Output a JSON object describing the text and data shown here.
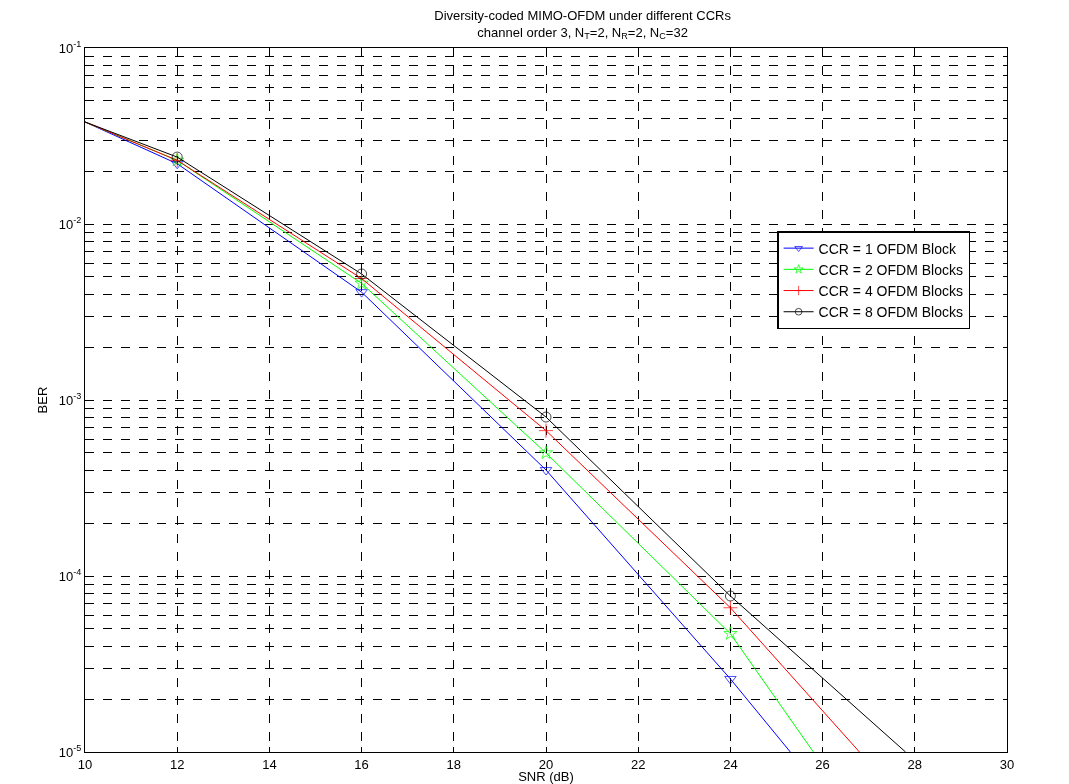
{
  "chart_data": {
    "type": "line",
    "title": "Diversity-coded MIMO-OFDM under different CCRs",
    "subtitle": "channel order 3, N$_{T}$=2, N$_{R}$=2, N$_{C}$=32",
    "xlabel": "SNR (dB)",
    "ylabel": "BER",
    "log": "y",
    "grid": true,
    "legend": "right",
    "line_style": "solid",
    "xlim": [
      10,
      30
    ],
    "xticks": [
      10,
      12,
      14,
      16,
      18,
      20,
      22,
      24,
      26,
      28,
      30
    ],
    "ylim": [
      1e-05,
      0.1
    ],
    "yticks": [
      {
        "value": 1e-05,
        "label": "10$^{-5}$"
      },
      {
        "value": 2e-05,
        "label": null
      },
      {
        "value": 3e-05,
        "label": null
      },
      {
        "value": 4e-05,
        "label": null
      },
      {
        "value": 5e-05,
        "label": null
      },
      {
        "value": 6e-05,
        "label": null
      },
      {
        "value": 7e-05,
        "label": null
      },
      {
        "value": 8e-05,
        "label": null
      },
      {
        "value": 9e-05,
        "label": null
      },
      {
        "value": 0.0001,
        "label": "10$^{-4}$"
      },
      {
        "value": 0.0002,
        "label": null
      },
      {
        "value": 0.0003,
        "label": null
      },
      {
        "value": 0.0004,
        "label": null
      },
      {
        "value": 0.0005,
        "label": null
      },
      {
        "value": 0.0006,
        "label": null
      },
      {
        "value": 0.0007,
        "label": null
      },
      {
        "value": 0.0008,
        "label": null
      },
      {
        "value": 0.0009,
        "label": null
      },
      {
        "value": 0.001,
        "label": "10$^{-3}$"
      },
      {
        "value": 0.002,
        "label": null
      },
      {
        "value": 0.003,
        "label": null
      },
      {
        "value": 0.004,
        "label": null
      },
      {
        "value": 0.005,
        "label": null
      },
      {
        "value": 0.006,
        "label": null
      },
      {
        "value": 0.007,
        "label": null
      },
      {
        "value": 0.008,
        "label": null
      },
      {
        "value": 0.009,
        "label": null
      },
      {
        "value": 0.01,
        "label": "10$^{-2}$"
      },
      {
        "value": 0.02,
        "label": null
      },
      {
        "value": 0.03,
        "label": null
      },
      {
        "value": 0.04,
        "label": null
      },
      {
        "value": 0.05,
        "label": null
      },
      {
        "value": 0.06,
        "label": null
      },
      {
        "value": 0.07,
        "label": null
      },
      {
        "value": 0.08,
        "label": null
      },
      {
        "value": 0.09,
        "label": null
      },
      {
        "value": 0.1,
        "label": "10$^{-1}$"
      }
    ],
    "series": [
      {
        "name": "CCR = 1 OFDM Block",
        "color": "#0000ff",
        "marker": "triangle",
        "x": [
          10,
          12,
          16,
          20,
          24,
          25.3
        ],
        "values": [
          0.038,
          0.022,
          0.0041,
          0.0004,
          2.6e-05,
          1e-05
        ]
      },
      {
        "name": "CCR = 2 OFDM Blocks",
        "color": "#00ff00",
        "marker": "star",
        "x": [
          10,
          12,
          16,
          20,
          24,
          25.8
        ],
        "values": [
          0.038,
          0.023,
          0.0046,
          0.0005,
          4.7e-05,
          1e-05
        ]
      },
      {
        "name": "CCR = 4 OFDM Blocks",
        "color": "#ff0000",
        "marker": "cross",
        "x": [
          10,
          12,
          16,
          20,
          24,
          26.8
        ],
        "values": [
          0.038,
          0.023,
          0.0049,
          0.00067,
          6.6e-05,
          1e-05
        ]
      },
      {
        "name": "CCR = 8 OFDM Blocks",
        "color": "#000000",
        "marker": "circle",
        "x": [
          10,
          12,
          16,
          20,
          24,
          27.8
        ],
        "values": [
          0.038,
          0.024,
          0.0052,
          0.0008,
          7.7e-05,
          1e-05
        ]
      }
    ]
  }
}
